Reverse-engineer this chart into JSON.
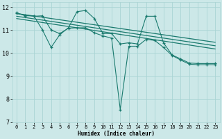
{
  "xlabel": "Humidex (Indice chaleur)",
  "bg_color": "#cce8e8",
  "line_color": "#1a7a6e",
  "grid_color": "#aad4d4",
  "xlim": [
    -0.5,
    23.5
  ],
  "ylim": [
    7,
    12.2
  ],
  "xticks": [
    0,
    1,
    2,
    3,
    4,
    5,
    6,
    7,
    8,
    9,
    10,
    11,
    12,
    13,
    14,
    15,
    16,
    17,
    18,
    19,
    20,
    21,
    22,
    23
  ],
  "yticks": [
    7,
    8,
    9,
    10,
    11,
    12
  ],
  "series1_x": [
    0,
    1,
    2,
    3,
    4,
    5,
    6,
    7,
    8,
    9,
    10,
    11,
    12,
    13,
    14,
    15,
    16,
    17,
    18,
    19,
    20,
    21,
    22,
    23
  ],
  "series1_y": [
    11.75,
    11.62,
    11.62,
    11.0,
    10.25,
    10.8,
    11.1,
    11.8,
    11.85,
    11.5,
    10.85,
    10.85,
    10.4,
    10.45,
    10.4,
    11.6,
    11.6,
    10.45,
    9.92,
    9.75,
    9.57,
    9.55,
    9.55,
    9.55
  ],
  "series2_x": [
    0,
    1,
    2,
    3,
    4,
    5,
    6,
    7,
    8,
    9,
    10,
    11,
    12,
    13,
    14,
    15,
    16,
    17,
    18,
    19,
    20,
    21,
    22,
    23
  ],
  "series2_y": [
    11.72,
    11.65,
    11.6,
    11.62,
    11.0,
    10.85,
    11.08,
    11.1,
    11.1,
    10.88,
    10.75,
    10.65,
    7.55,
    10.3,
    10.3,
    10.6,
    10.55,
    10.25,
    9.9,
    9.7,
    9.52,
    9.5,
    9.5,
    9.5
  ],
  "trend1_x": [
    0,
    23
  ],
  "trend1_y": [
    11.72,
    10.47
  ],
  "trend2_x": [
    0,
    23
  ],
  "trend2_y": [
    11.6,
    10.32
  ],
  "trend3_x": [
    0,
    23
  ],
  "trend3_y": [
    11.5,
    10.18
  ]
}
